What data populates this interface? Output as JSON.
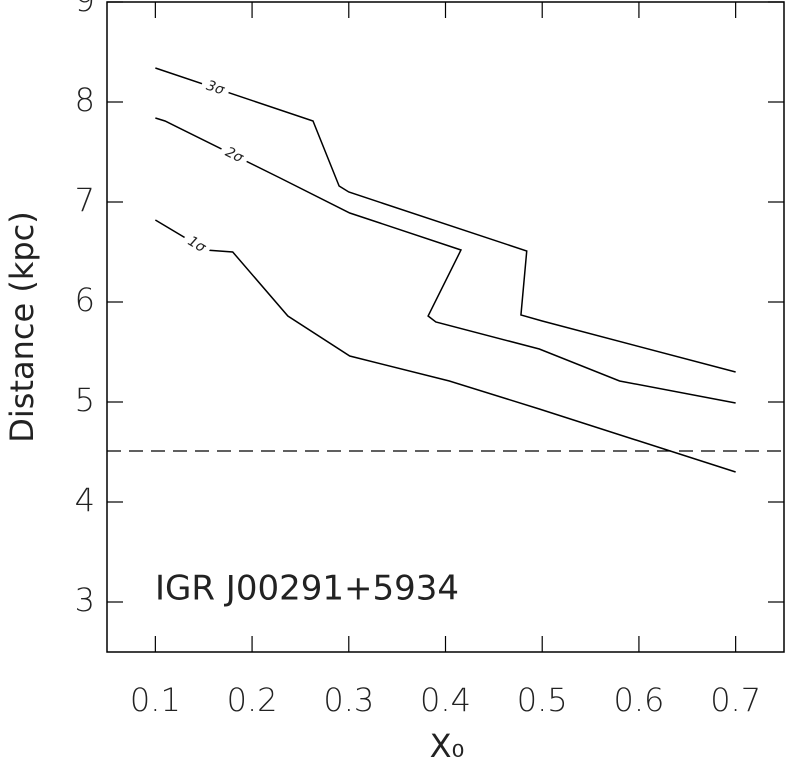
{
  "chart_data": {
    "type": "line",
    "xlabel": "X₀",
    "ylabel": "Distance (kpc)",
    "annotation": "IGR J00291+5934",
    "xlim": [
      0.05,
      0.75
    ],
    "ylim": [
      2.5,
      9
    ],
    "xticks": [
      0.1,
      0.2,
      0.3,
      0.4,
      0.5,
      0.6,
      0.7
    ],
    "yticks": [
      3,
      4,
      5,
      6,
      7,
      8,
      9
    ],
    "series": [
      {
        "name": "3σ",
        "color": "#000000",
        "x": [
          0.1,
          0.263,
          0.29,
          0.3,
          0.484,
          0.478,
          0.5,
          0.7
        ],
        "values": [
          8.34,
          7.81,
          7.16,
          7.1,
          6.51,
          5.87,
          5.81,
          5.3
        ]
      },
      {
        "name": "2σ",
        "color": "#000000",
        "x": [
          0.1,
          0.11,
          0.229,
          0.301,
          0.416,
          0.382,
          0.39,
          0.497,
          0.58,
          0.7
        ],
        "values": [
          7.84,
          7.81,
          7.24,
          6.89,
          6.52,
          5.86,
          5.8,
          5.53,
          5.21,
          4.99
        ]
      },
      {
        "name": "1σ",
        "color": "#000000",
        "x": [
          0.1,
          0.152,
          0.18,
          0.237,
          0.301,
          0.404,
          0.497,
          0.7
        ],
        "values": [
          6.82,
          6.52,
          6.5,
          5.86,
          5.46,
          5.21,
          4.93,
          4.3
        ]
      }
    ],
    "hlines": [
      {
        "value": 4.51,
        "dash": "dashed",
        "color": "#000000"
      }
    ]
  }
}
